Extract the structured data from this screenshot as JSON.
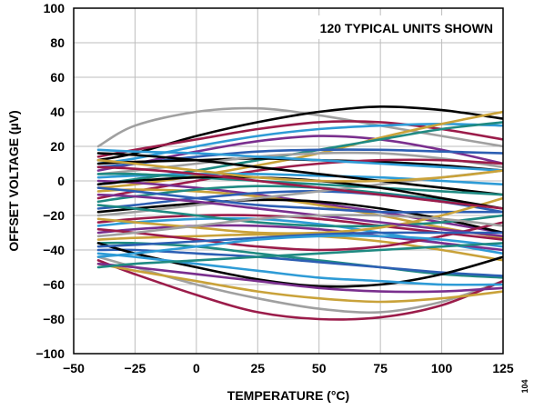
{
  "chart_data": {
    "type": "line",
    "xlabel": "TEMPERATURE (°C)",
    "ylabel": "OFFSET VOLTAGE (µV)",
    "annotation": "120 TYPICAL UNITS SHOWN",
    "figure_id": "104",
    "xlim": [
      -50,
      125
    ],
    "ylim": [
      -100,
      100
    ],
    "x_ticks": [
      -50,
      -25,
      0,
      25,
      50,
      75,
      100,
      125
    ],
    "y_ticks": [
      -100,
      -80,
      -60,
      -40,
      -20,
      0,
      20,
      40,
      60,
      80,
      100
    ],
    "grid": true,
    "x": [
      -40,
      -25,
      0,
      25,
      50,
      75,
      100,
      125
    ],
    "series": [
      {
        "color": "#a0a0a0",
        "values": [
          20,
          32,
          40,
          42,
          38,
          32,
          26,
          20
        ]
      },
      {
        "color": "#000000",
        "values": [
          12,
          16,
          26,
          34,
          40,
          43,
          41,
          36
        ]
      },
      {
        "color": "#9b1c4a",
        "values": [
          14,
          18,
          24,
          30,
          34,
          34,
          30,
          24
        ]
      },
      {
        "color": "#2e9bd6",
        "values": [
          10,
          13,
          20,
          26,
          30,
          32,
          33,
          32
        ]
      },
      {
        "color": "#7a2f8e",
        "values": [
          6,
          10,
          17,
          23,
          26,
          24,
          18,
          10
        ]
      },
      {
        "color": "#c9a23a",
        "values": [
          -4,
          -2,
          3,
          9,
          16,
          25,
          33,
          40
        ]
      },
      {
        "color": "#1f8a82",
        "values": [
          -2,
          1,
          6,
          12,
          18,
          24,
          30,
          34
        ]
      },
      {
        "color": "#2d5fb3",
        "values": [
          8,
          10,
          14,
          17,
          18,
          18,
          17,
          16
        ]
      },
      {
        "color": "#000000",
        "values": [
          10,
          11,
          12,
          13,
          12,
          11,
          9,
          6
        ]
      },
      {
        "color": "#a0a0a0",
        "values": [
          4,
          6,
          10,
          14,
          16,
          16,
          13,
          8
        ]
      },
      {
        "color": "#9b1c4a",
        "values": [
          -10,
          -6,
          0,
          6,
          10,
          12,
          12,
          10
        ]
      },
      {
        "color": "#2e9bd6",
        "values": [
          2,
          3,
          4,
          4,
          3,
          2,
          0,
          -2
        ]
      },
      {
        "color": "#7a2f8e",
        "values": [
          0,
          -1,
          -4,
          -8,
          -13,
          -18,
          -24,
          -30
        ]
      },
      {
        "color": "#c9a23a",
        "values": [
          -6,
          -5,
          -6,
          -9,
          -14,
          -20,
          -27,
          -33
        ]
      },
      {
        "color": "#1f8a82",
        "values": [
          -12,
          -9,
          -5,
          -3,
          -4,
          -7,
          -11,
          -16
        ]
      },
      {
        "color": "#2d5fb3",
        "values": [
          -16,
          -14,
          -10,
          -7,
          -6,
          -8,
          -12,
          -18
        ]
      },
      {
        "color": "#000000",
        "values": [
          -18,
          -16,
          -13,
          -11,
          -12,
          -16,
          -22,
          -30
        ]
      },
      {
        "color": "#a0a0a0",
        "values": [
          -20,
          -18,
          -14,
          -10,
          -6,
          -2,
          2,
          6
        ]
      },
      {
        "color": "#9b1c4a",
        "values": [
          -24,
          -22,
          -20,
          -20,
          -22,
          -26,
          -30,
          -34
        ]
      },
      {
        "color": "#2e9bd6",
        "values": [
          -26,
          -24,
          -22,
          -22,
          -25,
          -30,
          -36,
          -42
        ]
      },
      {
        "color": "#7a2f8e",
        "values": [
          -30,
          -28,
          -26,
          -26,
          -28,
          -32,
          -36,
          -40
        ]
      },
      {
        "color": "#c9a23a",
        "values": [
          -34,
          -33,
          -32,
          -31,
          -32,
          -35,
          -40,
          -46
        ]
      },
      {
        "color": "#1f8a82",
        "values": [
          -36,
          -36,
          -38,
          -42,
          -46,
          -50,
          -54,
          -56
        ]
      },
      {
        "color": "#2d5fb3",
        "values": [
          -40,
          -40,
          -42,
          -44,
          -47,
          -50,
          -53,
          -55
        ]
      },
      {
        "color": "#000000",
        "values": [
          -36,
          -42,
          -50,
          -57,
          -61,
          -60,
          -54,
          -44
        ]
      },
      {
        "color": "#a0a0a0",
        "values": [
          -44,
          -50,
          -60,
          -68,
          -74,
          -76,
          -70,
          -58
        ]
      },
      {
        "color": "#9b1c4a",
        "values": [
          -46,
          -54,
          -66,
          -76,
          -80,
          -79,
          -72,
          -58
        ]
      },
      {
        "color": "#c9a23a",
        "values": [
          -48,
          -52,
          -58,
          -64,
          -68,
          -70,
          -68,
          -64
        ]
      },
      {
        "color": "#7a2f8e",
        "values": [
          -48,
          -50,
          -54,
          -58,
          -62,
          -64,
          -64,
          -62
        ]
      },
      {
        "color": "#2e9bd6",
        "values": [
          -42,
          -44,
          -48,
          -52,
          -56,
          -58,
          -60,
          -60
        ]
      },
      {
        "color": "#1f8a82",
        "values": [
          -14,
          -16,
          -20,
          -24,
          -26,
          -26,
          -24,
          -20
        ]
      },
      {
        "color": "#2d5fb3",
        "values": [
          -4,
          -6,
          -10,
          -14,
          -16,
          -18,
          -18,
          -18
        ]
      },
      {
        "color": "#000000",
        "values": [
          16,
          15,
          12,
          8,
          4,
          0,
          -4,
          -8
        ]
      },
      {
        "color": "#9b1c4a",
        "values": [
          -28,
          -30,
          -34,
          -38,
          -40,
          -38,
          -32,
          -24
        ]
      },
      {
        "color": "#2e9bd6",
        "values": [
          18,
          17,
          16,
          14,
          12,
          10,
          8,
          6
        ]
      },
      {
        "color": "#c9a23a",
        "values": [
          -22,
          -24,
          -27,
          -30,
          -30,
          -27,
          -20,
          -10
        ]
      },
      {
        "color": "#7a2f8e",
        "values": [
          -8,
          -9,
          -12,
          -16,
          -20,
          -24,
          -28,
          -32
        ]
      },
      {
        "color": "#1f8a82",
        "values": [
          4,
          4,
          2,
          0,
          -2,
          -4,
          -6,
          -8
        ]
      },
      {
        "color": "#a0a0a0",
        "values": [
          -32,
          -30,
          -26,
          -22,
          -20,
          -20,
          -22,
          -26
        ]
      },
      {
        "color": "#2d5fb3",
        "values": [
          -38,
          -37,
          -35,
          -33,
          -31,
          -30,
          -30,
          -30
        ]
      },
      {
        "color": "#000000",
        "values": [
          -2,
          0,
          2,
          2,
          0,
          -4,
          -10,
          -16
        ]
      },
      {
        "color": "#9b1c4a",
        "values": [
          8,
          7,
          4,
          0,
          -4,
          -8,
          -12,
          -16
        ]
      },
      {
        "color": "#2e9bd6",
        "values": [
          -44,
          -42,
          -38,
          -34,
          -32,
          -32,
          -34,
          -38
        ]
      },
      {
        "color": "#c9a23a",
        "values": [
          12,
          10,
          6,
          2,
          0,
          0,
          2,
          6
        ]
      },
      {
        "color": "#1f8a82",
        "values": [
          -50,
          -48,
          -46,
          -44,
          -42,
          -40,
          -38,
          -36
        ]
      }
    ]
  }
}
